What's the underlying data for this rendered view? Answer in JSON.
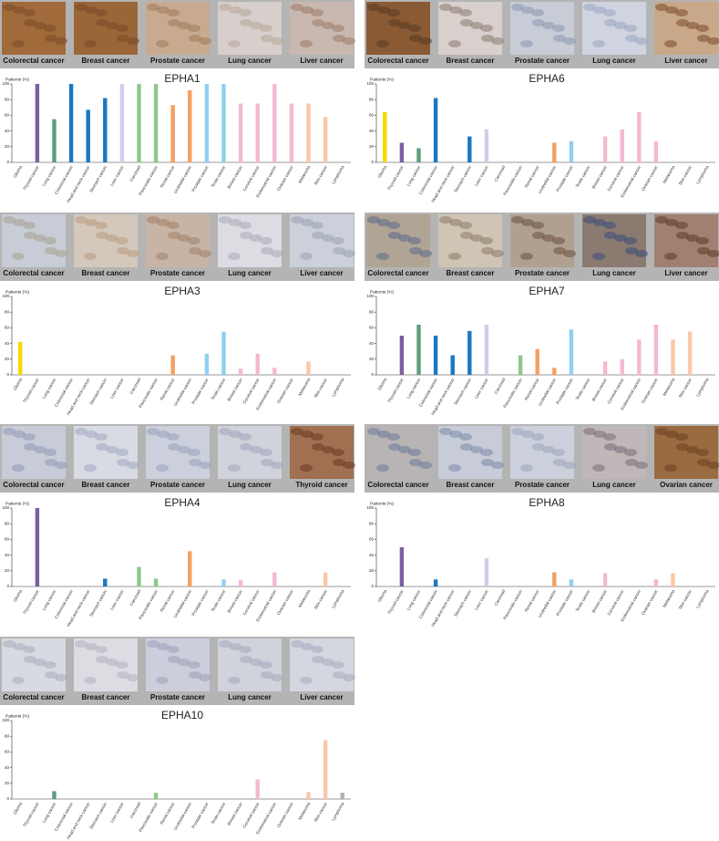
{
  "chart_data": [
    {
      "type": "bar",
      "title": "EPHA1",
      "y_label": "Patients (%)",
      "images": [
        "Colorectal cancer",
        "Breast cancer",
        "Prostate cancer",
        "Lung cancer",
        "Liver cancer"
      ],
      "categories": [
        "Glioma",
        "Thyroid cancer",
        "Lung cancer",
        "Colorectal cancer",
        "Head and neck cancer",
        "Stomach cancer",
        "Liver cancer",
        "Carcinoid",
        "Pancreatic cancer",
        "Renal cancer",
        "Urothelial cancer",
        "Prostate cancer",
        "Testis cancer",
        "Breast cancer",
        "Cervical cancer",
        "Endometrial cancer",
        "Ovarian cancer",
        "Melanoma",
        "Skin cancer",
        "Lymphoma"
      ],
      "values": [
        0,
        100,
        55,
        100,
        67,
        82,
        100,
        100,
        100,
        73,
        92,
        100,
        100,
        75,
        75,
        100,
        75,
        75,
        58,
        0
      ],
      "colors": [
        "#f5d800",
        "#7b5fa0",
        "#5a9e7e",
        "#1a78c2",
        "#1a78c2",
        "#1a78c2",
        "#d4cceb",
        "#8dc88a",
        "#8dc88a",
        "#f4a060",
        "#f4a060",
        "#8fd0f0",
        "#8fd0f0",
        "#f4b8d4",
        "#f4b8d4",
        "#f4b8d4",
        "#f4b8d4",
        "#f9c8a8",
        "#f9c8a8",
        "#b0b0b0"
      ],
      "ylim": [
        0,
        100
      ],
      "yticks": [
        0,
        20,
        40,
        60,
        80,
        100
      ]
    },
    {
      "type": "bar",
      "title": "EPHA6",
      "y_label": "Patients (%)",
      "images": [
        "Colorectal cancer",
        "Breast cancer",
        "Prostate cancer",
        "Lung cancer",
        "Liver cancer"
      ],
      "categories": [
        "Glioma",
        "Thyroid cancer",
        "Lung cancer",
        "Colorectal cancer",
        "Head and neck cancer",
        "Stomach cancer",
        "Liver cancer",
        "Carcinoid",
        "Pancreatic cancer",
        "Renal cancer",
        "Urothelial cancer",
        "Prostate cancer",
        "Testis cancer",
        "Breast cancer",
        "Cervical cancer",
        "Endometrial cancer",
        "Ovarian cancer",
        "Melanoma",
        "Skin cancer",
        "Lymphoma"
      ],
      "values": [
        64,
        25,
        18,
        82,
        0,
        33,
        42,
        0,
        0,
        0,
        25,
        27,
        0,
        33,
        42,
        64,
        27,
        0,
        0,
        0
      ],
      "colors": [
        "#f5d800",
        "#7b5fa0",
        "#5a9e7e",
        "#1a78c2",
        "#1a78c2",
        "#1a78c2",
        "#d4cceb",
        "#8dc88a",
        "#8dc88a",
        "#f4a060",
        "#f4a060",
        "#8fd0f0",
        "#8fd0f0",
        "#f4b8d4",
        "#f4b8d4",
        "#f4b8d4",
        "#f4b8d4",
        "#f9c8a8",
        "#f9c8a8",
        "#b0b0b0"
      ],
      "ylim": [
        0,
        100
      ],
      "yticks": [
        0,
        20,
        40,
        60,
        80,
        100
      ]
    },
    {
      "type": "bar",
      "title": "EPHA3",
      "y_label": "Patients (%)",
      "images": [
        "Colorectal cancer",
        "Breast cancer",
        "Prostate cancer",
        "Lung cancer",
        "Liver cancer"
      ],
      "categories": [
        "Glioma",
        "Thyroid cancer",
        "Lung cancer",
        "Colorectal cancer",
        "Head and neck cancer",
        "Stomach cancer",
        "Liver cancer",
        "Carcinoid",
        "Pancreatic cancer",
        "Renal cancer",
        "Urothelial cancer",
        "Prostate cancer",
        "Testis cancer",
        "Breast cancer",
        "Cervical cancer",
        "Endometrial cancer",
        "Ovarian cancer",
        "Melanoma",
        "Skin cancer",
        "Lymphoma"
      ],
      "values": [
        42,
        0,
        0,
        0,
        0,
        0,
        0,
        0,
        0,
        25,
        0,
        27,
        55,
        8,
        27,
        9,
        0,
        17,
        0,
        0
      ],
      "colors": [
        "#f5d800",
        "#7b5fa0",
        "#5a9e7e",
        "#1a78c2",
        "#1a78c2",
        "#1a78c2",
        "#d4cceb",
        "#8dc88a",
        "#8dc88a",
        "#f4a060",
        "#f4a060",
        "#8fd0f0",
        "#8fd0f0",
        "#f4b8d4",
        "#f4b8d4",
        "#f4b8d4",
        "#f4b8d4",
        "#f9c8a8",
        "#f9c8a8",
        "#b0b0b0"
      ],
      "ylim": [
        0,
        100
      ],
      "yticks": [
        0,
        20,
        40,
        60,
        80,
        100
      ]
    },
    {
      "type": "bar",
      "title": "EPHA7",
      "y_label": "Patients (%)",
      "images": [
        "Colorectal cancer",
        "Breast cancer",
        "Prostate cancer",
        "Lung cancer",
        "Liver cancer"
      ],
      "categories": [
        "Glioma",
        "Thyroid cancer",
        "Lung cancer",
        "Colorectal cancer",
        "Head and neck cancer",
        "Stomach cancer",
        "Liver cancer",
        "Carcinoid",
        "Pancreatic cancer",
        "Renal cancer",
        "Urothelial cancer",
        "Prostate cancer",
        "Testis cancer",
        "Breast cancer",
        "Cervical cancer",
        "Endometrial cancer",
        "Ovarian cancer",
        "Melanoma",
        "Skin cancer",
        "Lymphoma"
      ],
      "values": [
        0,
        50,
        64,
        50,
        25,
        56,
        64,
        0,
        25,
        33,
        9,
        58,
        0,
        17,
        20,
        45,
        64,
        45,
        55,
        0
      ],
      "colors": [
        "#f5d800",
        "#7b5fa0",
        "#5a9e7e",
        "#1a78c2",
        "#1a78c2",
        "#1a78c2",
        "#d4cceb",
        "#8dc88a",
        "#8dc88a",
        "#f4a060",
        "#f4a060",
        "#8fd0f0",
        "#8fd0f0",
        "#f4b8d4",
        "#f4b8d4",
        "#f4b8d4",
        "#f4b8d4",
        "#f9c8a8",
        "#f9c8a8",
        "#b0b0b0"
      ],
      "ylim": [
        0,
        100
      ],
      "yticks": [
        0,
        20,
        40,
        60,
        80,
        100
      ]
    },
    {
      "type": "bar",
      "title": "EPHA4",
      "y_label": "Patients (%)",
      "images": [
        "Colorectal cancer",
        "Breast cancer",
        "Prostate cancer",
        "Lung cancer",
        "Thyroid cancer"
      ],
      "categories": [
        "Glioma",
        "Thyroid cancer",
        "Lung cancer",
        "Colorectal cancer",
        "Head and neck cancer",
        "Stomach cancer",
        "Liver cancer",
        "Carcinoid",
        "Pancreatic cancer",
        "Renal cancer",
        "Urothelial cancer",
        "Prostate cancer",
        "Testis cancer",
        "Breast cancer",
        "Cervical cancer",
        "Endometrial cancer",
        "Ovarian cancer",
        "Melanoma",
        "Skin cancer",
        "Lymphoma"
      ],
      "values": [
        0,
        100,
        0,
        0,
        0,
        10,
        0,
        25,
        10,
        0,
        45,
        0,
        9,
        8,
        0,
        18,
        0,
        0,
        18,
        0
      ],
      "colors": [
        "#f5d800",
        "#7b5fa0",
        "#5a9e7e",
        "#1a78c2",
        "#1a78c2",
        "#1a78c2",
        "#d4cceb",
        "#8dc88a",
        "#8dc88a",
        "#f4a060",
        "#f4a060",
        "#8fd0f0",
        "#8fd0f0",
        "#f4b8d4",
        "#f4b8d4",
        "#f4b8d4",
        "#f4b8d4",
        "#f9c8a8",
        "#f9c8a8",
        "#b0b0b0"
      ],
      "ylim": [
        0,
        100
      ],
      "yticks": [
        0,
        20,
        40,
        60,
        80,
        100
      ]
    },
    {
      "type": "bar",
      "title": "EPHA8",
      "y_label": "Patients (%)",
      "images": [
        "Colorectal cancer",
        "Breast cancer",
        "Prostate cancer",
        "Lung cancer",
        "Ovarian cancer"
      ],
      "categories": [
        "Glioma",
        "Thyroid cancer",
        "Lung cancer",
        "Colorectal cancer",
        "Head and neck cancer",
        "Stomach cancer",
        "Liver cancer",
        "Carcinoid",
        "Pancreatic cancer",
        "Renal cancer",
        "Urothelial cancer",
        "Prostate cancer",
        "Testis cancer",
        "Breast cancer",
        "Cervical cancer",
        "Endometrial cancer",
        "Ovarian cancer",
        "Melanoma",
        "Skin cancer",
        "Lymphoma"
      ],
      "values": [
        0,
        50,
        0,
        9,
        0,
        0,
        36,
        0,
        0,
        0,
        18,
        9,
        0,
        17,
        0,
        0,
        9,
        17,
        0,
        0
      ],
      "colors": [
        "#f5d800",
        "#7b5fa0",
        "#5a9e7e",
        "#1a78c2",
        "#1a78c2",
        "#1a78c2",
        "#d4cceb",
        "#8dc88a",
        "#8dc88a",
        "#f4a060",
        "#f4a060",
        "#8fd0f0",
        "#8fd0f0",
        "#f4b8d4",
        "#f4b8d4",
        "#f4b8d4",
        "#f4b8d4",
        "#f9c8a8",
        "#f9c8a8",
        "#b0b0b0"
      ],
      "ylim": [
        0,
        100
      ],
      "yticks": [
        0,
        20,
        40,
        60,
        80,
        100
      ]
    },
    {
      "type": "bar",
      "title": "EPHA10",
      "y_label": "Patients (%)",
      "images": [
        "Colorectal cancer",
        "Breast cancer",
        "Prostate cancer",
        "Lung cancer",
        "Liver cancer"
      ],
      "categories": [
        "Glioma",
        "Thyroid cancer",
        "Lung cancer",
        "Colorectal cancer",
        "Head and neck cancer",
        "Stomach cancer",
        "Liver cancer",
        "Carcinoid",
        "Pancreatic cancer",
        "Renal cancer",
        "Urothelial cancer",
        "Prostate cancer",
        "Testis cancer",
        "Breast cancer",
        "Cervical cancer",
        "Endometrial cancer",
        "Ovarian cancer",
        "Melanoma",
        "Skin cancer",
        "Lymphoma"
      ],
      "values": [
        0,
        0,
        10,
        0,
        0,
        0,
        0,
        0,
        8,
        0,
        0,
        0,
        0,
        0,
        25,
        0,
        0,
        9,
        75,
        8
      ],
      "colors": [
        "#f5d800",
        "#7b5fa0",
        "#5a9e7e",
        "#1a78c2",
        "#1a78c2",
        "#1a78c2",
        "#d4cceb",
        "#8dc88a",
        "#8dc88a",
        "#f4a060",
        "#f4a060",
        "#8fd0f0",
        "#8fd0f0",
        "#f4b8d4",
        "#f4b8d4",
        "#f4b8d4",
        "#f4b8d4",
        "#f9c8a8",
        "#f9c8a8",
        "#b0b0b0"
      ],
      "ylim": [
        0,
        100
      ],
      "yticks": [
        0,
        20,
        40,
        60,
        80,
        100
      ]
    }
  ]
}
